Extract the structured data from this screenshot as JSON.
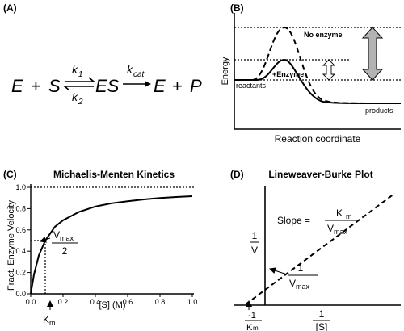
{
  "panel_a": {
    "label": "(A)",
    "E": "E",
    "plus1": "+",
    "S": "S",
    "k1": "k",
    "k1_sub": "1",
    "k2": "k",
    "k2_sub": "2",
    "ES": "ES",
    "kcat": "k",
    "kcat_sub": "cat",
    "E2": "E",
    "plus2": "+",
    "P": "P"
  },
  "panel_b": {
    "label": "(B)",
    "ylabel": "Energy",
    "xlabel": "Reaction coordinate",
    "no_enzyme": "No enzyme",
    "enzyme": "+Enzyme",
    "reactants": "reactants",
    "products": "products"
  },
  "panel_c": {
    "label": "(C)",
    "title": "Michaelis-Menten Kinetics",
    "ylabel": "Fract. Enzyme Velocity",
    "xlabel": "[S] (M)",
    "vmax_v": "V",
    "vmax_sub": "max",
    "vmax_den": "2",
    "km": "K",
    "km_sub": "m",
    "xticks": [
      "0.0",
      "0.2",
      "0.4",
      "0.6",
      "0.8",
      "1.0"
    ],
    "yticks": [
      "0.0",
      "0.2",
      "0.4",
      "0.6",
      "0.8",
      "1.0"
    ]
  },
  "panel_d": {
    "label": "(D)",
    "title": "Lineweaver-Burke Plot",
    "slope": "Slope =",
    "slope_num_k": "K",
    "slope_num_sub": "m",
    "slope_den_v": "V",
    "slope_den_sub": "max",
    "yaxis_num": "1",
    "yaxis_den": "V",
    "int_num": "1",
    "int_den_v": "V",
    "int_den_sub": "max",
    "xint_num": "-1",
    "xint_den_k": "K",
    "xint_den_sub": "m",
    "xaxis_num": "1",
    "xaxis_den": "[S]"
  },
  "chart_data": [
    {
      "type": "line",
      "title": "Michaelis-Menten Kinetics",
      "xlabel": "[S] (M)",
      "ylabel": "Fract. Enzyme Velocity",
      "xlim": [
        0,
        1
      ],
      "ylim": [
        0,
        1
      ],
      "km": 0.09,
      "series": [
        {
          "x": [
            0.0,
            0.02,
            0.05,
            0.09,
            0.15,
            0.2,
            0.3,
            0.4,
            0.5,
            0.6,
            0.7,
            0.8,
            0.9,
            1.0
          ],
          "values": [
            0.0,
            0.18,
            0.36,
            0.5,
            0.63,
            0.69,
            0.77,
            0.82,
            0.85,
            0.87,
            0.886,
            0.9,
            0.909,
            0.917
          ]
        }
      ]
    }
  ]
}
